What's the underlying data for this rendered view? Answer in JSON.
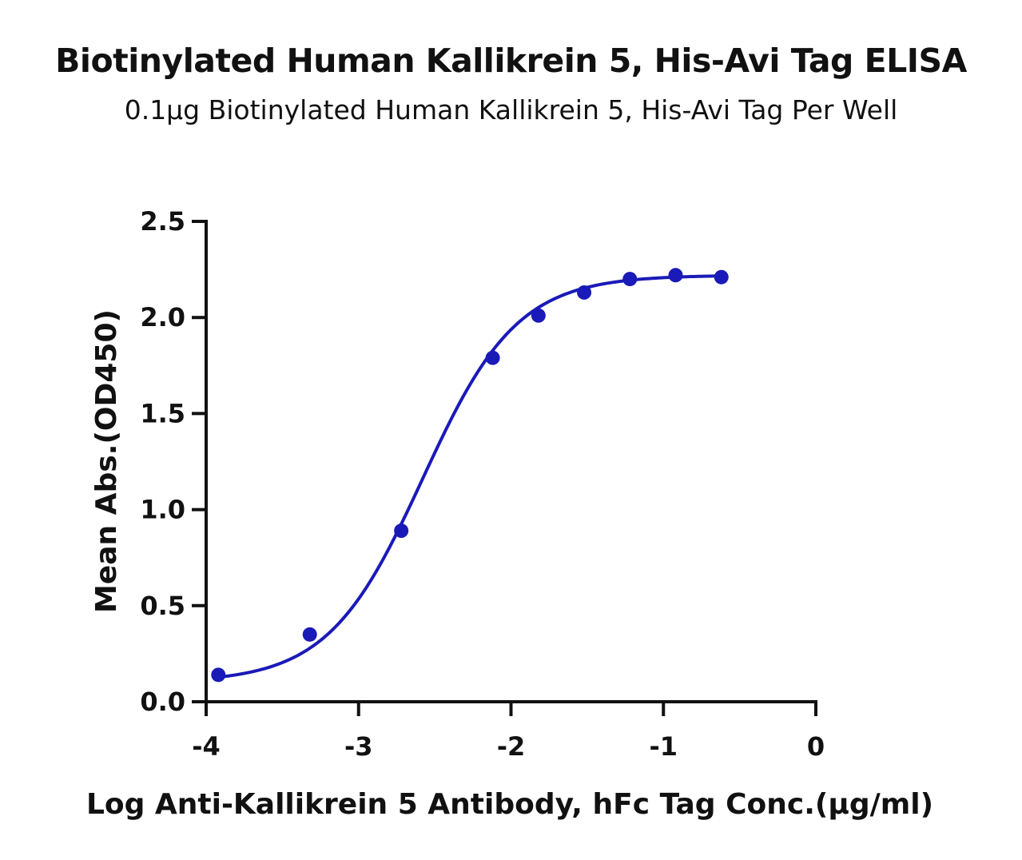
{
  "chart_data": {
    "type": "scatter",
    "title": "Biotinylated Human Kallikrein 5, His-Avi Tag ELISA",
    "subtitle": "0.1μg Biotinylated Human Kallikrein 5, His-Avi Tag Per Well",
    "xlabel": "Log Anti-Kallikrein 5 Antibody, hFc Tag Conc.(μg/ml)",
    "ylabel": "Mean Abs.(OD450)",
    "xlim": [
      -4,
      0
    ],
    "ylim": [
      0,
      2.5
    ],
    "x_ticks": [
      "-4",
      "-3",
      "-2",
      "-1",
      "0"
    ],
    "y_ticks": [
      "0.0",
      "0.5",
      "1.0",
      "1.5",
      "2.0",
      "2.5"
    ],
    "series": [
      {
        "color": "#1a1ab8",
        "x": [
          -3.92,
          -3.32,
          -2.72,
          -2.12,
          -1.82,
          -1.52,
          -1.22,
          -0.92,
          -0.62
        ],
        "y": [
          0.14,
          0.35,
          0.89,
          1.79,
          2.01,
          2.13,
          2.2,
          2.22,
          2.21
        ]
      }
    ],
    "fit": {
      "model": "4PL",
      "bottom": 0.1,
      "top": 2.22,
      "logEC50": -2.58,
      "hill": 1.4,
      "x_range": [
        -3.92,
        -0.62
      ]
    },
    "grid": false,
    "legend": "none"
  }
}
